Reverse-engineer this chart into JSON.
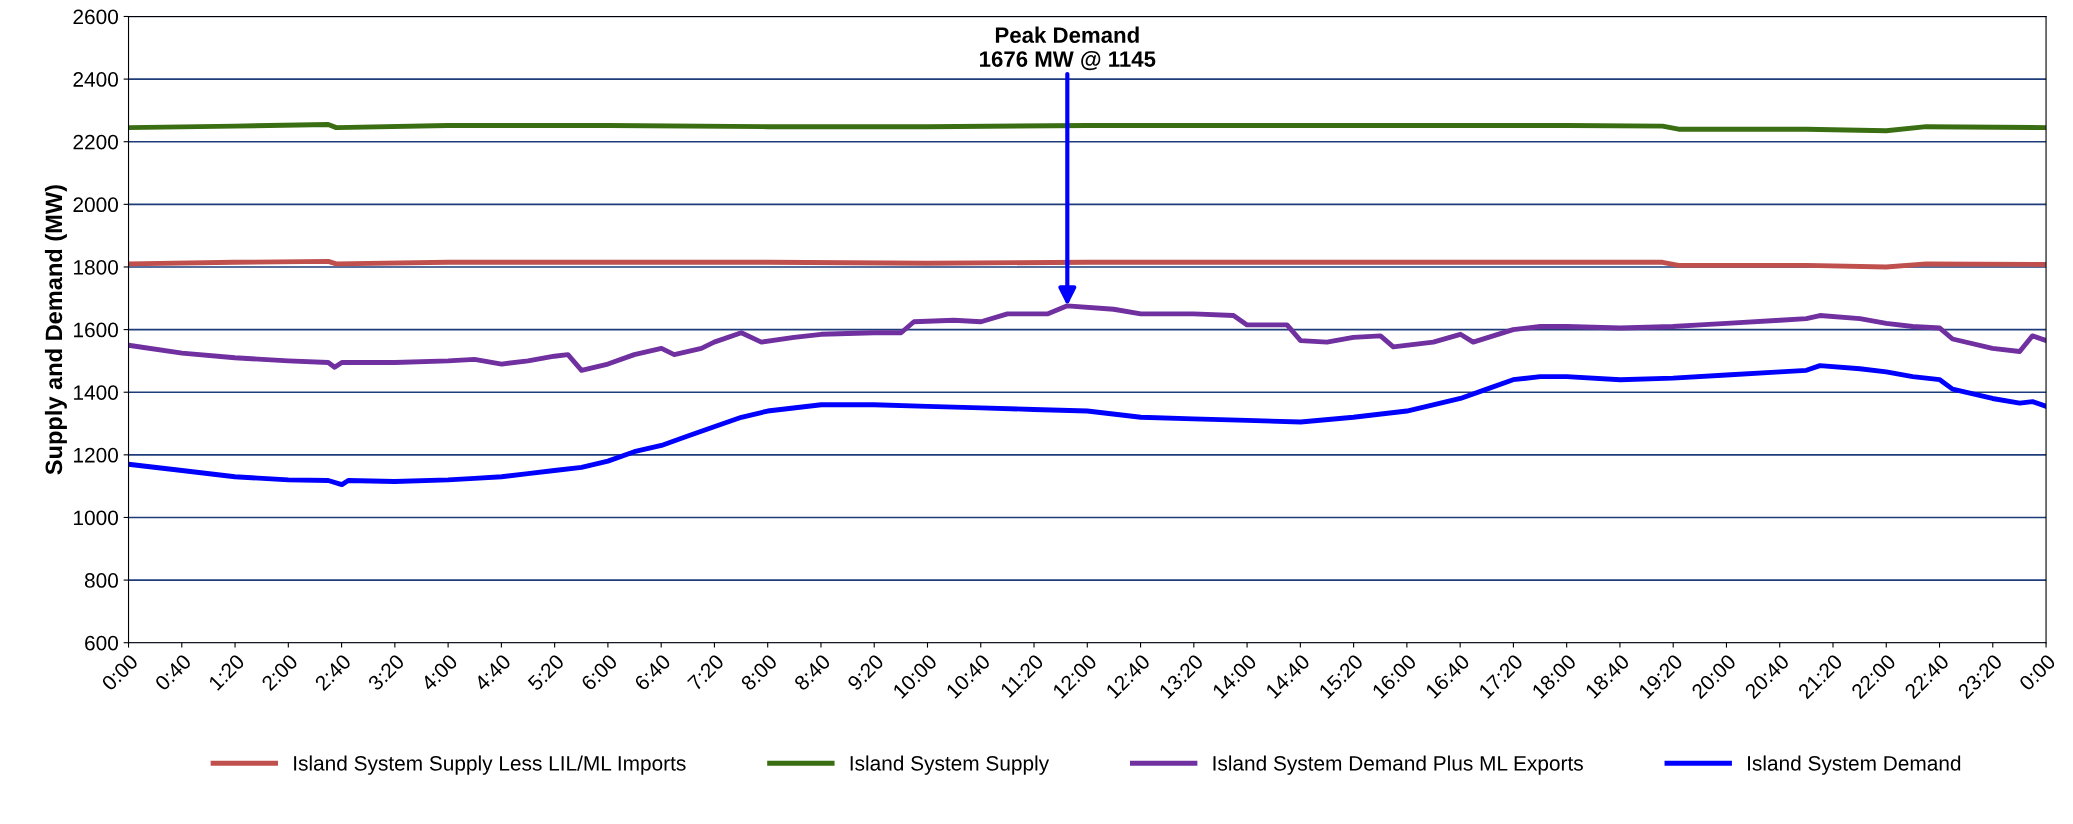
{
  "chart_data": {
    "type": "line",
    "ylabel": "Supply and Demand (MW)",
    "xlim": [
      0,
      24
    ],
    "ylim": [
      600,
      2600
    ],
    "yticks": [
      600,
      800,
      1000,
      1200,
      1400,
      1600,
      1800,
      2000,
      2200,
      2400,
      2600
    ],
    "xticks": [
      {
        "value": 0,
        "label": "0:00"
      },
      {
        "value": 0.6667,
        "label": "0:40"
      },
      {
        "value": 1.3333,
        "label": "1:20"
      },
      {
        "value": 2,
        "label": "2:00"
      },
      {
        "value": 2.6667,
        "label": "2:40"
      },
      {
        "value": 3.3333,
        "label": "3:20"
      },
      {
        "value": 4,
        "label": "4:00"
      },
      {
        "value": 4.6667,
        "label": "4:40"
      },
      {
        "value": 5.3333,
        "label": "5:20"
      },
      {
        "value": 6,
        "label": "6:00"
      },
      {
        "value": 6.6667,
        "label": "6:40"
      },
      {
        "value": 7.3333,
        "label": "7:20"
      },
      {
        "value": 8,
        "label": "8:00"
      },
      {
        "value": 8.6667,
        "label": "8:40"
      },
      {
        "value": 9.3333,
        "label": "9:20"
      },
      {
        "value": 10,
        "label": "10:00"
      },
      {
        "value": 10.6667,
        "label": "10:40"
      },
      {
        "value": 11.3333,
        "label": "11:20"
      },
      {
        "value": 12,
        "label": "12:00"
      },
      {
        "value": 12.6667,
        "label": "12:40"
      },
      {
        "value": 13.3333,
        "label": "13:20"
      },
      {
        "value": 14,
        "label": "14:00"
      },
      {
        "value": 14.6667,
        "label": "14:40"
      },
      {
        "value": 15.3333,
        "label": "15:20"
      },
      {
        "value": 16,
        "label": "16:00"
      },
      {
        "value": 16.6667,
        "label": "16:40"
      },
      {
        "value": 17.3333,
        "label": "17:20"
      },
      {
        "value": 18,
        "label": "18:00"
      },
      {
        "value": 18.6667,
        "label": "18:40"
      },
      {
        "value": 19.3333,
        "label": "19:20"
      },
      {
        "value": 20,
        "label": "20:00"
      },
      {
        "value": 20.6667,
        "label": "20:40"
      },
      {
        "value": 21.3333,
        "label": "21:20"
      },
      {
        "value": 22,
        "label": "22:00"
      },
      {
        "value": 22.6667,
        "label": "22:40"
      },
      {
        "value": 23.3333,
        "label": "23:20"
      },
      {
        "value": 24,
        "label": "0:00"
      }
    ],
    "grid": "y",
    "legend": "bottom",
    "marker": "none",
    "line_style": "solid",
    "annotations": [
      {
        "text": "Peak Demand\n1676 MW @ 1145",
        "x": 11.75,
        "y": 1676
      }
    ],
    "series": [
      {
        "name": "Island System Supply Less LIL/ML Imports",
        "color": "#c0504d",
        "x": [
          0,
          1.33,
          2.5,
          2.6,
          4,
          6,
          8,
          10,
          12,
          14,
          16,
          18,
          19.2,
          19.4,
          21,
          22,
          22.5,
          24
        ],
        "values": [
          1810,
          1815,
          1818,
          1810,
          1815,
          1815,
          1815,
          1812,
          1815,
          1815,
          1815,
          1815,
          1815,
          1805,
          1805,
          1800,
          1810,
          1808
        ]
      },
      {
        "name": "Island System Supply",
        "color": "#3a6e12",
        "x": [
          0,
          1.33,
          2.5,
          2.6,
          4,
          6,
          8,
          10,
          12,
          14,
          16,
          18,
          19.2,
          19.4,
          21,
          22,
          22.5,
          24
        ],
        "values": [
          2245,
          2250,
          2255,
          2245,
          2252,
          2252,
          2248,
          2248,
          2252,
          2252,
          2252,
          2252,
          2250,
          2240,
          2240,
          2235,
          2248,
          2245
        ]
      },
      {
        "name": "Island System Demand Plus ML Exports",
        "color": "#7030a0",
        "x": [
          0,
          0.67,
          1.33,
          2,
          2.5,
          2.58,
          2.67,
          3.33,
          4,
          4.33,
          4.67,
          5,
          5.33,
          5.5,
          5.67,
          6,
          6.33,
          6.67,
          6.83,
          7.17,
          7.33,
          7.67,
          7.92,
          8.33,
          8.67,
          9.33,
          9.67,
          9.83,
          10.33,
          10.67,
          11,
          11.5,
          11.75,
          12.33,
          12.67,
          13.33,
          13.83,
          14,
          14.5,
          14.67,
          15,
          15.33,
          15.67,
          15.83,
          16.33,
          16.67,
          16.83,
          17.33,
          17.67,
          18,
          18.67,
          19.33,
          19.67,
          20,
          20.67,
          21,
          21.17,
          21.67,
          22,
          22.33,
          22.67,
          22.83,
          23.33,
          23.67,
          23.83,
          24
        ],
        "values": [
          1550,
          1525,
          1510,
          1500,
          1495,
          1480,
          1495,
          1495,
          1500,
          1505,
          1490,
          1500,
          1515,
          1520,
          1470,
          1490,
          1520,
          1540,
          1520,
          1540,
          1560,
          1590,
          1560,
          1575,
          1585,
          1590,
          1590,
          1625,
          1630,
          1625,
          1650,
          1650,
          1676,
          1665,
          1650,
          1650,
          1645,
          1615,
          1615,
          1565,
          1560,
          1575,
          1580,
          1545,
          1560,
          1585,
          1560,
          1600,
          1610,
          1610,
          1605,
          1610,
          1615,
          1620,
          1630,
          1635,
          1645,
          1635,
          1620,
          1610,
          1605,
          1570,
          1540,
          1530,
          1580,
          1565
        ]
      },
      {
        "name": "Island System Demand",
        "color": "#0000ff",
        "x": [
          0,
          0.67,
          1.33,
          2,
          2.5,
          2.67,
          2.75,
          3.33,
          4,
          4.33,
          4.67,
          5,
          5.33,
          5.67,
          6,
          6.33,
          6.67,
          7,
          7.33,
          7.67,
          8,
          8.67,
          9.33,
          10,
          10.67,
          11.33,
          12,
          12.67,
          13.33,
          14,
          14.67,
          15.33,
          16,
          16.67,
          17,
          17.33,
          17.67,
          18,
          18.67,
          19.33,
          20,
          20.67,
          21,
          21.17,
          21.67,
          22,
          22.33,
          22.67,
          22.83,
          23.33,
          23.67,
          23.83,
          24
        ],
        "values": [
          1170,
          1150,
          1130,
          1120,
          1118,
          1105,
          1118,
          1115,
          1120,
          1125,
          1130,
          1140,
          1150,
          1160,
          1180,
          1210,
          1230,
          1260,
          1290,
          1320,
          1340,
          1360,
          1360,
          1355,
          1350,
          1345,
          1340,
          1320,
          1315,
          1310,
          1305,
          1320,
          1340,
          1380,
          1410,
          1440,
          1450,
          1450,
          1440,
          1445,
          1455,
          1465,
          1470,
          1485,
          1475,
          1465,
          1450,
          1440,
          1410,
          1380,
          1365,
          1370,
          1355
        ]
      }
    ]
  }
}
